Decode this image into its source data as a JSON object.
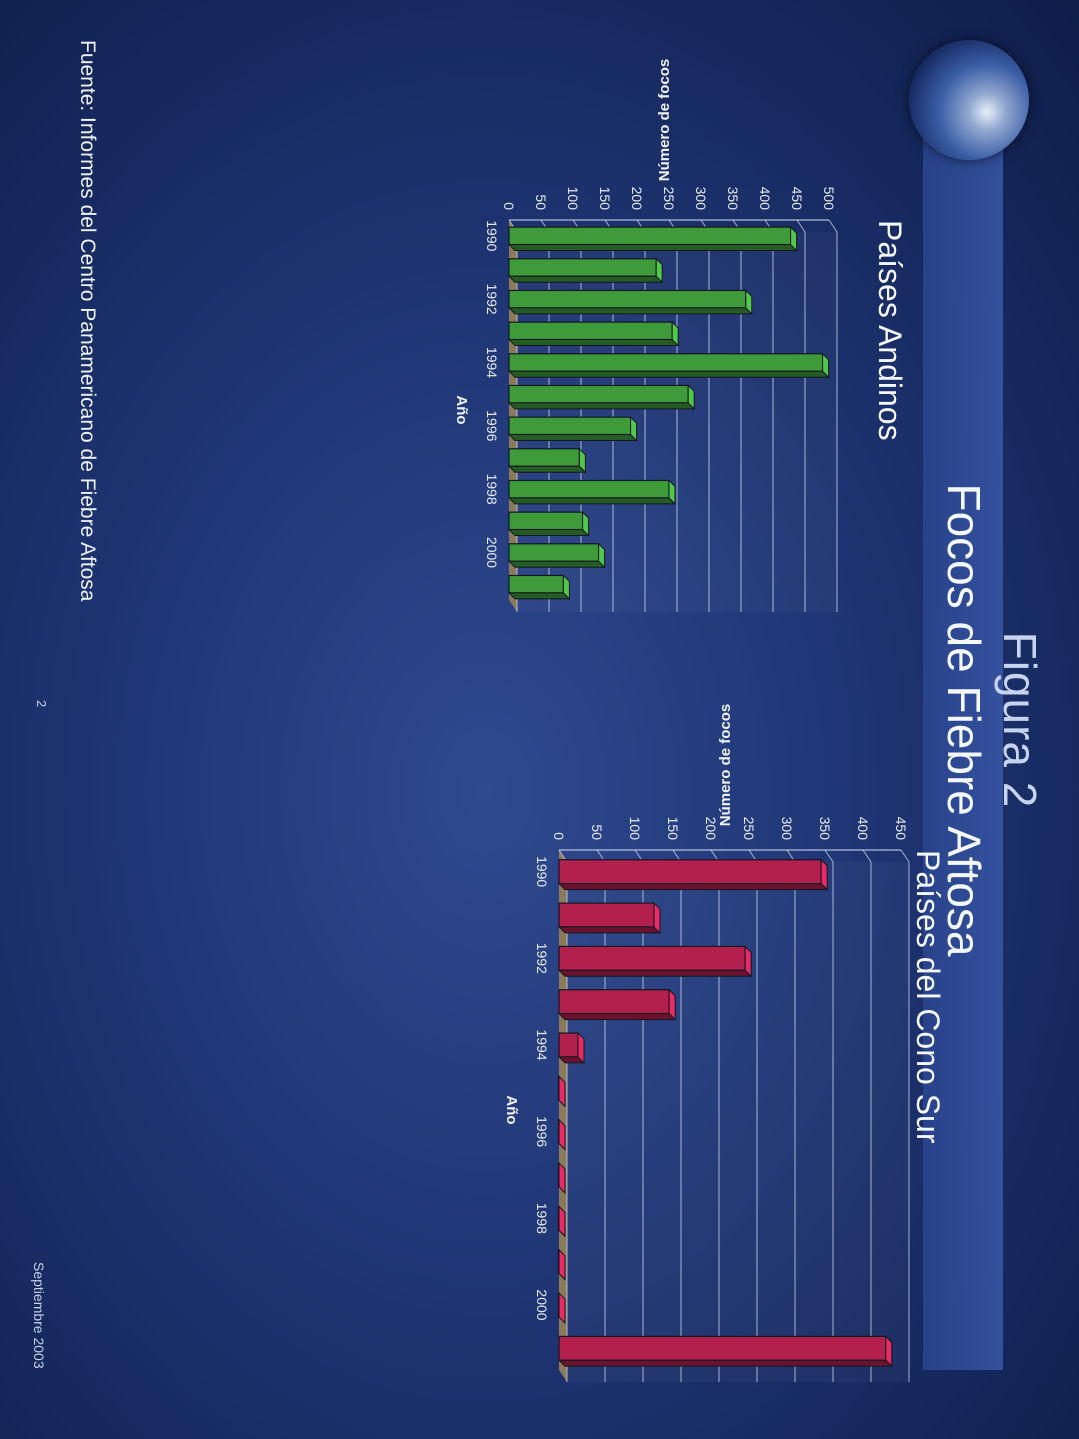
{
  "figure": {
    "title": "Figura 2",
    "subtitle": "Focos de Fiebre Aftosa",
    "source": "Fuente: Informes del Centro Panamericano de Fiebre Aftosa",
    "page_number": "2",
    "date": "Septiembre 2003"
  },
  "colors": {
    "background": "#1f3574",
    "andinos_bar": "#3f9a3a",
    "cono_sur_bar": "#b3204d",
    "grid": "#d7deef"
  },
  "chart_data": [
    {
      "type": "bar",
      "title": "Países Andinos",
      "xlabel": "Año",
      "ylabel": "Número de focos",
      "categories": [
        "1990",
        "1991",
        "1992",
        "1993",
        "1994",
        "1995",
        "1996",
        "1997",
        "1998",
        "1999",
        "2000",
        "2001"
      ],
      "tick_labels": [
        "1990",
        "1992",
        "1994",
        "1996",
        "1998",
        "2000"
      ],
      "values": [
        440,
        230,
        370,
        255,
        490,
        280,
        190,
        110,
        250,
        115,
        140,
        85
      ],
      "ylim": [
        0,
        500
      ],
      "yticks": [
        0,
        50,
        100,
        150,
        200,
        250,
        300,
        350,
        400,
        450,
        500
      ],
      "grid": true
    },
    {
      "type": "bar",
      "title": "Países del Cono Sur",
      "xlabel": "Año",
      "ylabel": "Número de focos",
      "categories": [
        "1990",
        "1991",
        "1992",
        "1993",
        "1994",
        "1995",
        "1996",
        "1997",
        "1998",
        "1999",
        "2000",
        "2001"
      ],
      "tick_labels": [
        "1990",
        "1992",
        "1994",
        "1996",
        "1998",
        "2000"
      ],
      "values": [
        345,
        125,
        245,
        145,
        25,
        0,
        0,
        0,
        0,
        0,
        0,
        430
      ],
      "ylim": [
        0,
        450
      ],
      "yticks": [
        0,
        50,
        100,
        150,
        200,
        250,
        300,
        350,
        400,
        450
      ],
      "grid": true
    }
  ]
}
